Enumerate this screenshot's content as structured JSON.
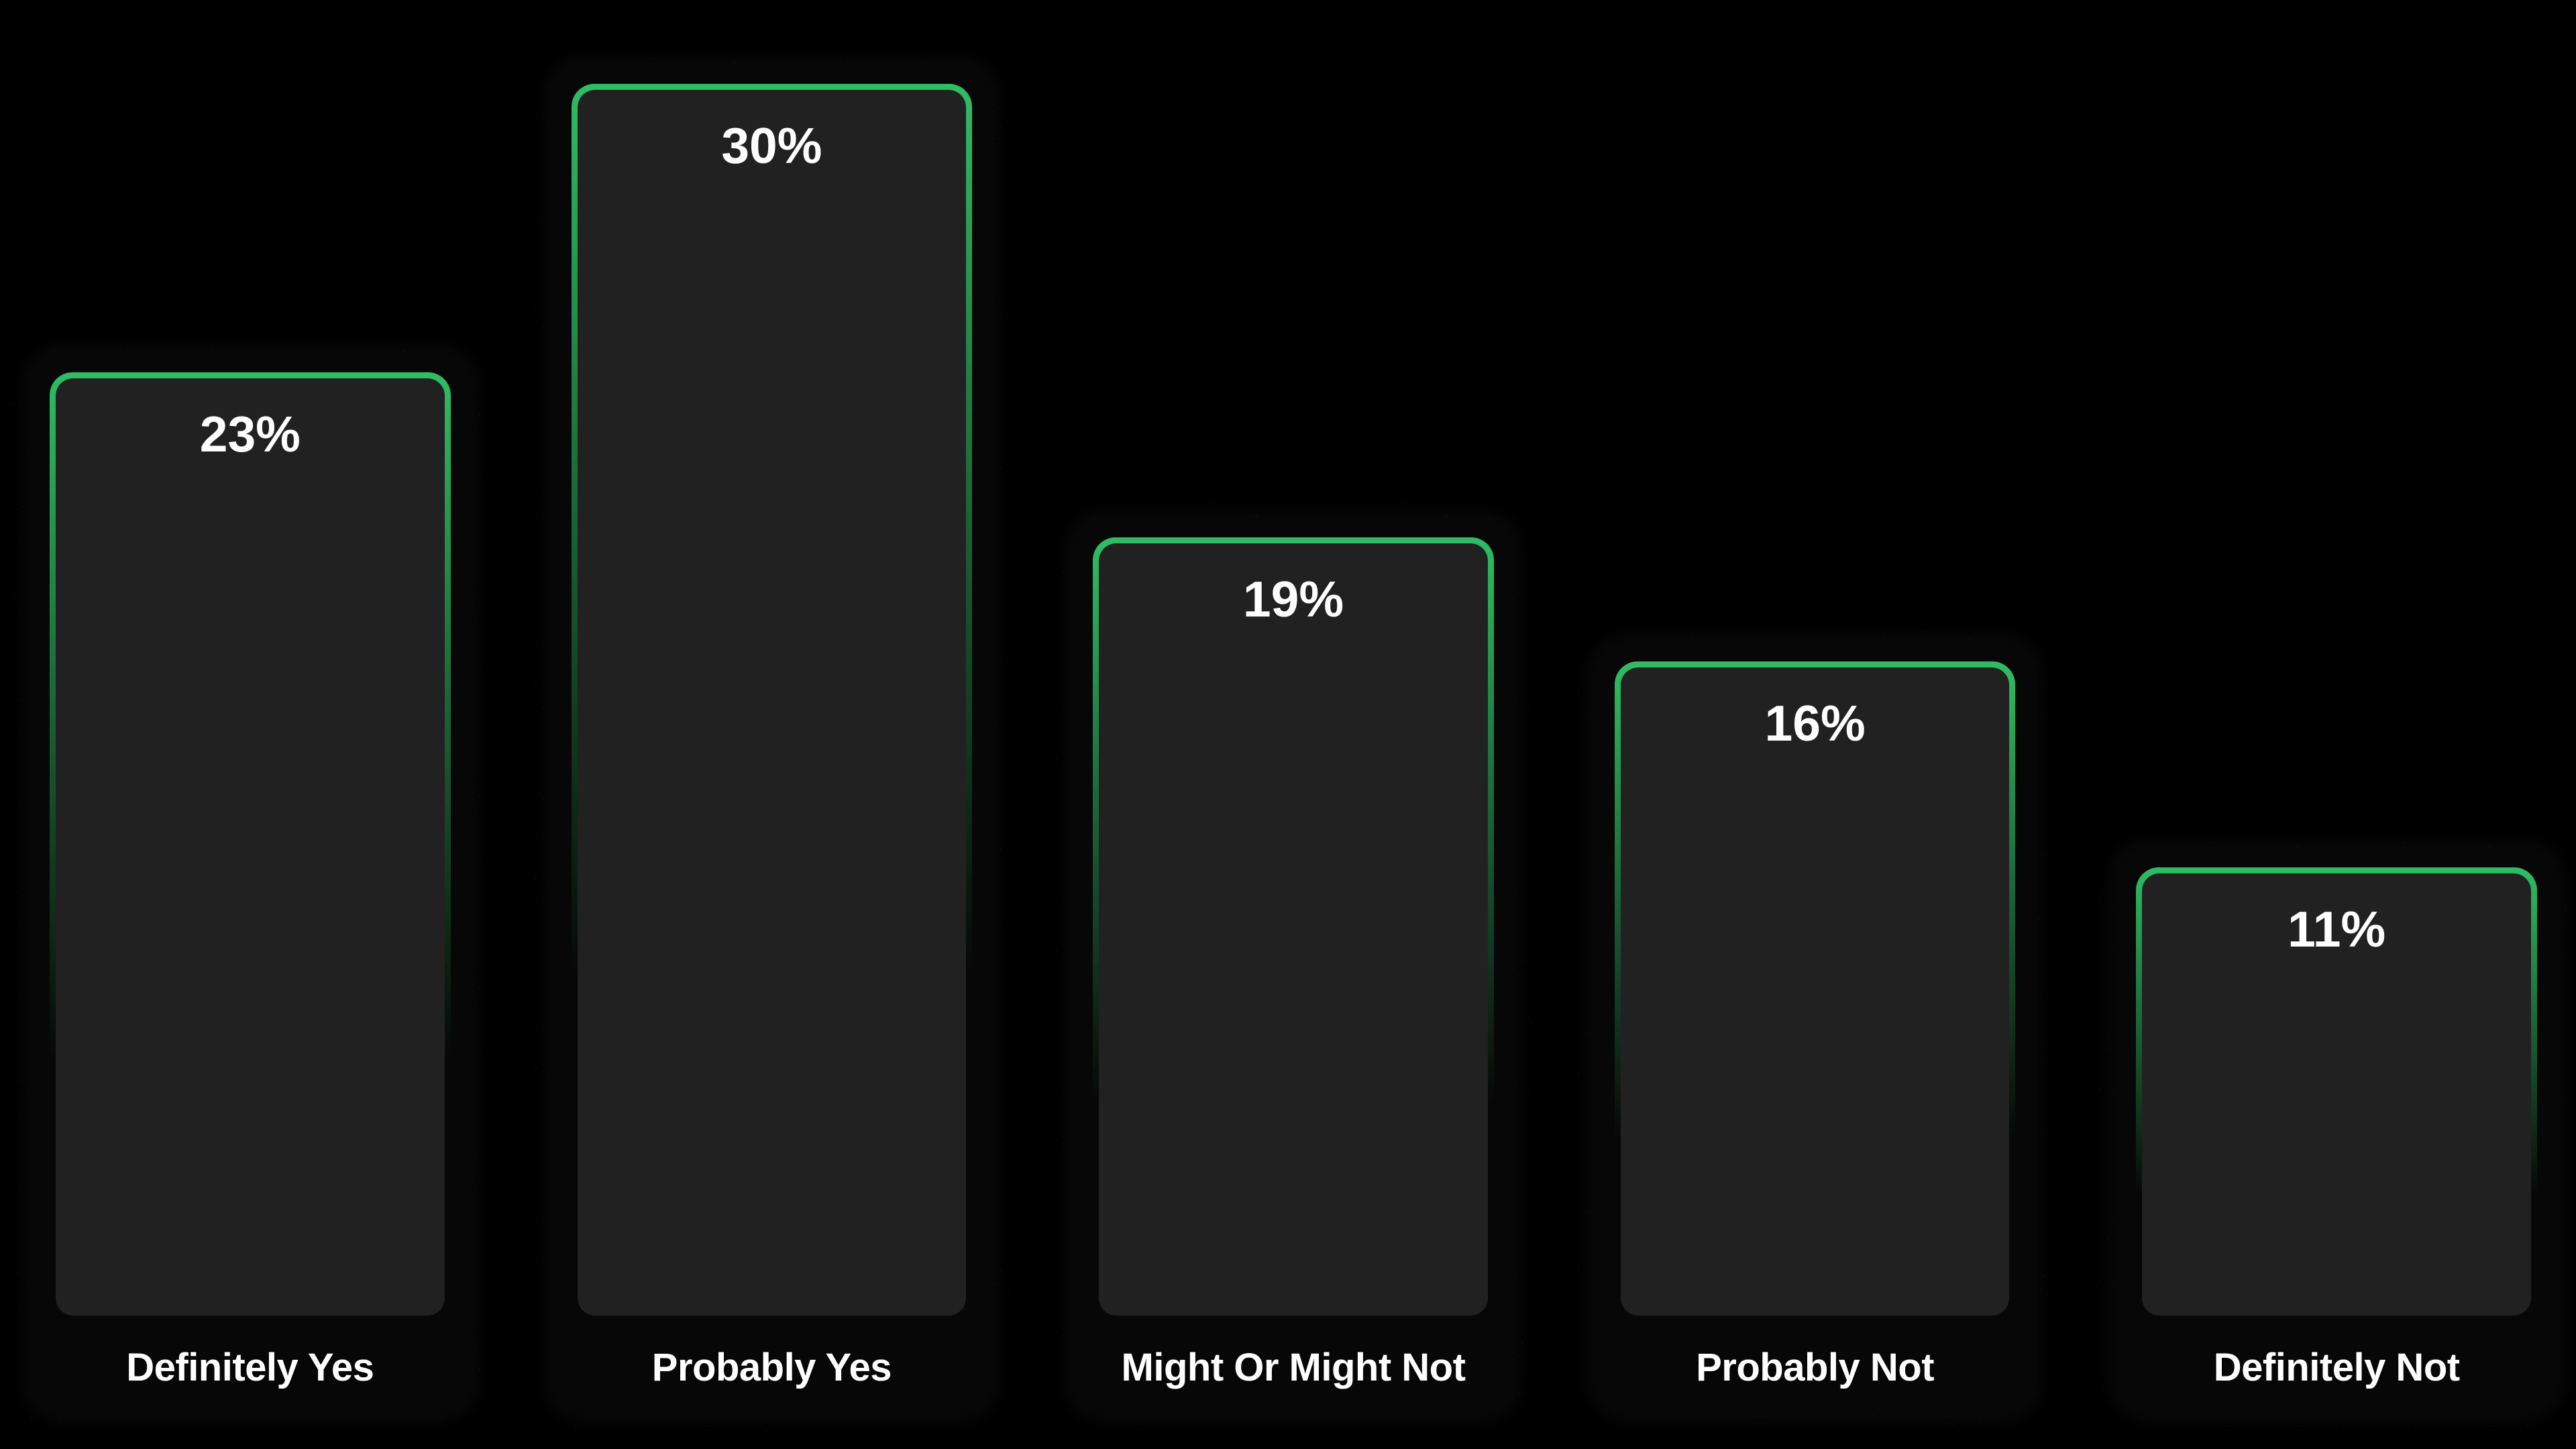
{
  "chart_data": {
    "type": "bar",
    "title": "",
    "xlabel": "",
    "ylabel": "",
    "unit": "percent",
    "ylim": [
      0,
      30
    ],
    "grid": false,
    "legend": "none",
    "orientation": "vertical",
    "categories": [
      "Definitely Yes",
      "Probably Yes",
      "Might Or Might Not",
      "Probably Not",
      "Definitely Not"
    ],
    "values": [
      23,
      30,
      19,
      16,
      11
    ],
    "points": [
      {
        "label": "Definitely Yes",
        "value": 23,
        "display": "23%"
      },
      {
        "label": "Probably Yes",
        "value": 30,
        "display": "30%"
      },
      {
        "label": "Might Or Might Not",
        "value": 19,
        "display": "19%"
      },
      {
        "label": "Probably Not",
        "value": 16,
        "display": "16%"
      },
      {
        "label": "Definitely Not",
        "value": 11,
        "display": "11%"
      }
    ]
  },
  "style": {
    "page_bg": "#000000",
    "card_bg": "#070707",
    "bar_fill": "#212121",
    "accent_green": "#2fbd63",
    "text_color": "#ffffff"
  }
}
